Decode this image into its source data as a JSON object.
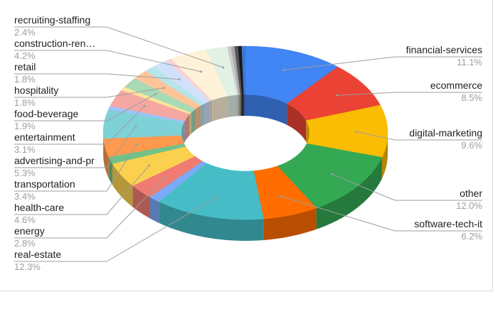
{
  "chart_data": {
    "type": "pie",
    "variant": "donut-3d",
    "title": "",
    "legend": "none",
    "slices": [
      {
        "label": "financial-services",
        "value_label": "11.1%",
        "value": 11.1,
        "color": "#4285f4"
      },
      {
        "label": "ecommerce",
        "value_label": "8.5%",
        "value": 8.5,
        "color": "#ea4335"
      },
      {
        "label": "digital-marketing",
        "value_label": "9.6%",
        "value": 9.6,
        "color": "#fbbc04"
      },
      {
        "label": "other",
        "value_label": "12.0%",
        "value": 12.0,
        "color": "#34a853"
      },
      {
        "label": "software-tech-it",
        "value_label": "6.2%",
        "value": 6.2,
        "color": "#ff6d01"
      },
      {
        "label": "real-estate",
        "value_label": "12.3%",
        "value": 12.3,
        "color": "#46bdc6"
      },
      {
        "label": "",
        "value_label": "",
        "value": 1.3,
        "color": "#7baaf7"
      },
      {
        "label": "energy",
        "value_label": "2.8%",
        "value": 2.8,
        "color": "#f07b72"
      },
      {
        "label": "health-care",
        "value_label": "4.6%",
        "value": 4.6,
        "color": "#fcd04f"
      },
      {
        "label": "",
        "value_label": "",
        "value": 1.3,
        "color": "#71c287"
      },
      {
        "label": "transportation",
        "value_label": "3.4%",
        "value": 3.4,
        "color": "#ff994d"
      },
      {
        "label": "advertising-and-pr",
        "value_label": "5.3%",
        "value": 5.3,
        "color": "#7ed1d7"
      },
      {
        "label": "",
        "value_label": "",
        "value": 0.7,
        "color": "#a0c2f9"
      },
      {
        "label": "entertainment",
        "value_label": "3.1%",
        "value": 3.1,
        "color": "#f5a7a1"
      },
      {
        "label": "",
        "value_label": "",
        "value": 0.7,
        "color": "#fde49b"
      },
      {
        "label": "food-beverage",
        "value_label": "1.9%",
        "value": 1.9,
        "color": "#a8dab5"
      },
      {
        "label": "hospitality",
        "value_label": "1.8%",
        "value": 1.8,
        "color": "#ffc599"
      },
      {
        "label": "",
        "value_label": "",
        "value": 1.2,
        "color": "#b5e5e8"
      },
      {
        "label": "retail",
        "value_label": "1.8%",
        "value": 1.8,
        "color": "#d0e1fc"
      },
      {
        "label": "",
        "value_label": "",
        "value": 0.6,
        "color": "#fad2d0"
      },
      {
        "label": "construction-ren…",
        "value_label": "4.2%",
        "value": 4.2,
        "color": "#fef3d8"
      },
      {
        "label": "recruiting-staffing",
        "value_label": "2.4%",
        "value": 2.4,
        "color": "#e1f1e6"
      },
      {
        "label": "",
        "value_label": "",
        "value": 0.4,
        "color": "#cccccc"
      },
      {
        "label": "",
        "value_label": "",
        "value": 0.4,
        "color": "#a9a9a9"
      },
      {
        "label": "",
        "value_label": "",
        "value": 0.4,
        "color": "#555555"
      },
      {
        "label": "",
        "value_label": "",
        "value": 0.4,
        "color": "#1a1a1a"
      },
      {
        "label": "",
        "value_label": "",
        "value": 0.4,
        "color": "#3c78d8"
      }
    ]
  }
}
